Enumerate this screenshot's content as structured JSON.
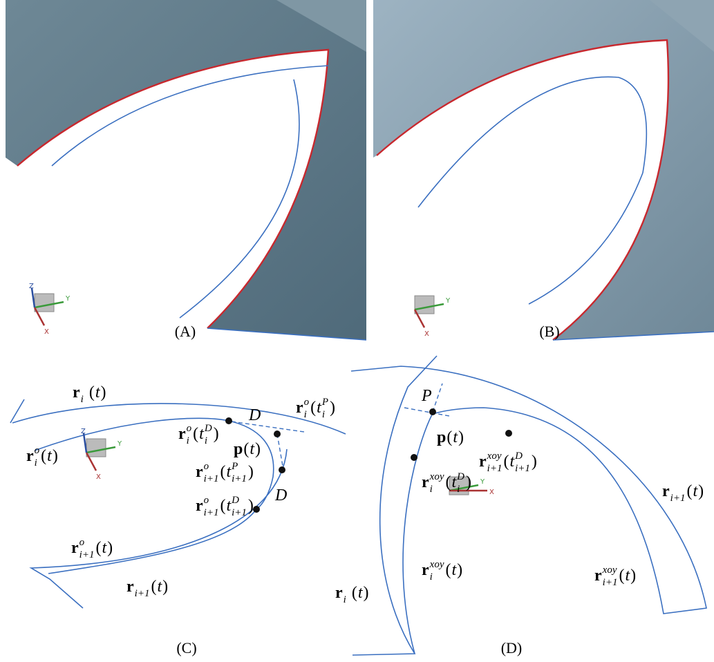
{
  "panels": [
    {
      "label": "(A)",
      "axes": [
        "Z",
        "Y",
        "X"
      ],
      "annotations": []
    },
    {
      "label": "(B)",
      "axes": [
        "Y",
        "X"
      ],
      "annotations": []
    },
    {
      "label": "(C)",
      "axes": [
        "Z",
        "Y",
        "X"
      ],
      "annotations": [
        [
          {
            "bold": "r",
            "sub": "i"
          },
          {
            "text": " ("
          },
          {
            "italic": "t"
          },
          {
            "text": ")"
          }
        ],
        [
          {
            "bold": "r",
            "sup": "o",
            "sub": "i"
          },
          {
            "text": "("
          },
          {
            "italic": "t",
            "sup": "P",
            "sub": "i"
          },
          {
            "text": ")"
          }
        ],
        [
          {
            "italic": "D"
          }
        ],
        [
          {
            "bold": "r",
            "sup": "o",
            "sub": "i"
          },
          {
            "text": "("
          },
          {
            "italic": "t",
            "sup": "D",
            "sub": "i"
          },
          {
            "text": ")"
          }
        ],
        [
          {
            "bold": "p"
          },
          {
            "text": "("
          },
          {
            "italic": "t"
          },
          {
            "text": ")"
          }
        ],
        [
          {
            "bold": "r",
            "sup": "o",
            "sub": "i"
          },
          {
            "text": "("
          },
          {
            "italic": "t"
          },
          {
            "text": ")"
          }
        ],
        [
          {
            "bold": "r",
            "sup": "o",
            "sub": "i+1"
          },
          {
            "text": "("
          },
          {
            "italic": "t",
            "sup": "P",
            "sub": "i+1"
          },
          {
            "text": ")"
          }
        ],
        [
          {
            "italic": "D"
          }
        ],
        [
          {
            "bold": "r",
            "sup": "o",
            "sub": "i+1"
          },
          {
            "text": "("
          },
          {
            "italic": "t",
            "sup": "D",
            "sub": "i+1"
          },
          {
            "text": ")"
          }
        ],
        [
          {
            "bold": "r",
            "sup": "o",
            "sub": "i+1"
          },
          {
            "text": "("
          },
          {
            "italic": "t"
          },
          {
            "text": ")"
          }
        ],
        [
          {
            "bold": "r",
            "sub": "i+1"
          },
          {
            "text": "("
          },
          {
            "italic": "t"
          },
          {
            "text": ")"
          }
        ]
      ]
    },
    {
      "label": "(D)",
      "axes": [
        "Y",
        "X"
      ],
      "annotations": [
        [
          {
            "italic": "P"
          }
        ],
        [
          {
            "bold": "p"
          },
          {
            "text": "("
          },
          {
            "italic": "t"
          },
          {
            "text": ")"
          }
        ],
        [
          {
            "bold": "r",
            "sup": "xoy",
            "sub": "i+1"
          },
          {
            "text": "("
          },
          {
            "italic": "t",
            "sup": "D",
            "sub": "i+1"
          },
          {
            "text": ")"
          }
        ],
        [
          {
            "bold": "r",
            "sup": "xoy",
            "sub": "i"
          },
          {
            "text": "("
          },
          {
            "italic": "t",
            "sup": "D",
            "sub": "i"
          },
          {
            "text": ")"
          }
        ],
        [
          {
            "bold": "r",
            "sub": "i+1"
          },
          {
            "text": "("
          },
          {
            "italic": "t"
          },
          {
            "text": ")"
          }
        ],
        [
          {
            "bold": "r",
            "sup": "xoy",
            "sub": "i"
          },
          {
            "text": "("
          },
          {
            "italic": "t"
          },
          {
            "text": ")"
          }
        ],
        [
          {
            "bold": "r",
            "sup": "xoy",
            "sub": "i+1"
          },
          {
            "text": "("
          },
          {
            "italic": "t"
          },
          {
            "text": ")"
          }
        ],
        [
          {
            "bold": "r",
            "sub": "i"
          },
          {
            "text": " ("
          },
          {
            "italic": "t"
          },
          {
            "text": ")"
          }
        ]
      ]
    }
  ]
}
